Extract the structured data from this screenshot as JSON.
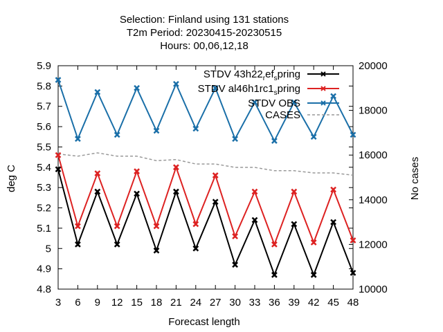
{
  "chart_data": {
    "type": "line",
    "title_lines": [
      "Selection: Finland using   131 stations",
      "T2m   Period: 20230415-20230515",
      "Hours: 00,06,12,18"
    ],
    "xlabel": "Forecast length",
    "ylabel": "deg C",
    "y2label": "No cases",
    "x": [
      3,
      6,
      9,
      12,
      15,
      18,
      21,
      24,
      27,
      30,
      33,
      36,
      39,
      42,
      45,
      48
    ],
    "x_ticks": [
      "3",
      "6",
      "9",
      "12",
      "15",
      "18",
      "21",
      "24",
      "27",
      "30",
      "33",
      "36",
      "39",
      "42",
      "45",
      "48"
    ],
    "xlim": [
      3,
      48
    ],
    "ylim": [
      4.8,
      5.9
    ],
    "y_ticks": [
      "4.8",
      "4.9",
      "5",
      "5.1",
      "5.2",
      "5.3",
      "5.4",
      "5.5",
      "5.6",
      "5.7",
      "5.8",
      "5.9"
    ],
    "y2lim": [
      10000,
      20000
    ],
    "y2_ticks": [
      "10000",
      "12000",
      "14000",
      "16000",
      "18000",
      "20000"
    ],
    "grid": false,
    "legend_position": "top-right",
    "legend_labels": [
      "STDV 43h22",
      "r",
      "ef",
      "s",
      "pring",
      "STDV al46h1rc1",
      "s",
      "pring",
      "STDV OBS",
      "CASES"
    ],
    "series": [
      {
        "name": "STDV 43h22_ref_spring",
        "axis": "left",
        "color": "#000000",
        "marker": "x",
        "values": [
          5.39,
          5.02,
          5.28,
          5.02,
          5.27,
          4.99,
          5.28,
          5.0,
          5.23,
          4.92,
          5.14,
          4.87,
          5.12,
          4.87,
          5.13,
          4.88
        ]
      },
      {
        "name": "STDV al46h1rc1_spring",
        "axis": "left",
        "color": "#dd2222",
        "marker": "x",
        "values": [
          5.46,
          5.11,
          5.37,
          5.11,
          5.38,
          5.11,
          5.4,
          5.12,
          5.36,
          5.06,
          5.28,
          5.02,
          5.28,
          5.03,
          5.29,
          5.04
        ]
      },
      {
        "name": "STDV OBS",
        "axis": "left",
        "color": "#1a6fa8",
        "marker": "x",
        "values": [
          5.83,
          5.54,
          5.77,
          5.56,
          5.79,
          5.58,
          5.81,
          5.59,
          5.79,
          5.54,
          5.72,
          5.53,
          5.72,
          5.55,
          5.75,
          5.56
        ]
      },
      {
        "name": "CASES",
        "axis": "right",
        "color": "#999999",
        "dashed": true,
        "values": [
          16050,
          15950,
          16100,
          15950,
          15950,
          15750,
          15800,
          15600,
          15600,
          15450,
          15450,
          15300,
          15300,
          15200,
          15200,
          15100
        ]
      }
    ]
  }
}
